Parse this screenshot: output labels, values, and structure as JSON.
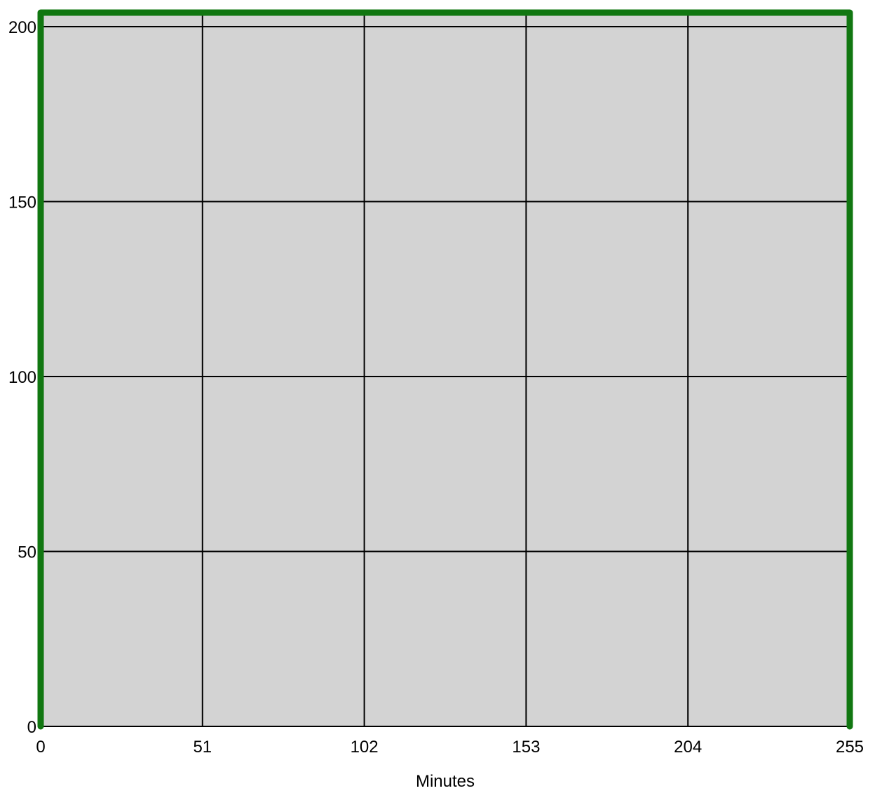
{
  "chart_data": {
    "type": "line",
    "title": "",
    "xlabel": "Minutes",
    "ylabel": "",
    "xlim": [
      0,
      255
    ],
    "ylim": [
      0,
      200
    ],
    "x_ticks": [
      0,
      51,
      102,
      153,
      204,
      255
    ],
    "y_ticks": [
      0,
      50,
      100,
      150,
      200
    ],
    "grid": true,
    "background_color": "#d3d3d3",
    "grid_color": "#000000",
    "series": [
      {
        "color": "#117711",
        "points": [
          {
            "x": 0,
            "y": 0
          },
          {
            "x": 0,
            "y": 204
          },
          {
            "x": 255,
            "y": 204
          },
          {
            "x": 255,
            "y": 0
          }
        ]
      }
    ]
  }
}
